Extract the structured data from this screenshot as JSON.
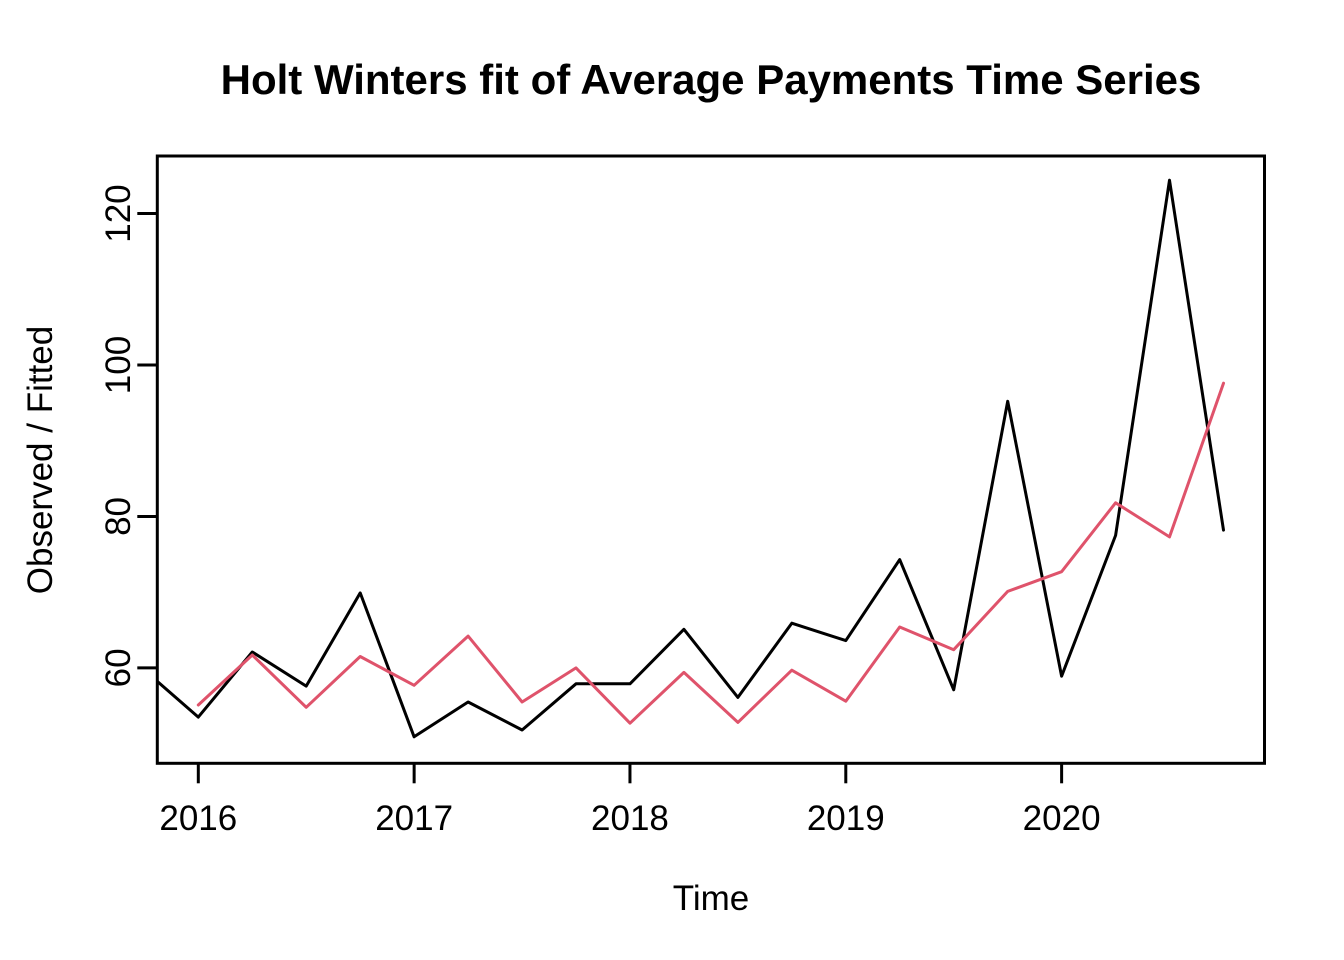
{
  "page": {
    "background": "#FFFFFF"
  },
  "chart_data": {
    "type": "line",
    "title": "Holt Winters fit of Average Payments Time Series",
    "xlabel": "Time",
    "ylabel": "Observed / Fitted",
    "grid": false,
    "legend": "none",
    "axis_color": "#000000",
    "xlim": [
      2015.81,
      2020.94
    ],
    "ylim": [
      47.4,
      127.6
    ],
    "x_tick_values": [
      2016,
      2017,
      2018,
      2019,
      2020
    ],
    "x_tick_labels": [
      "2016",
      "2017",
      "2018",
      "2019",
      "2020"
    ],
    "y_tick_values": [
      60,
      80,
      100,
      120
    ],
    "y_tick_labels": [
      "60",
      "80",
      "100",
      "120"
    ],
    "series": [
      {
        "name": "Observed",
        "color": "#000000",
        "x": [
          2015.75,
          2016.0,
          2016.25,
          2016.5,
          2016.75,
          2017.0,
          2017.25,
          2017.5,
          2017.75,
          2018.0,
          2018.25,
          2018.5,
          2018.75,
          2019.0,
          2019.25,
          2019.5,
          2019.75,
          2020.0,
          2020.25,
          2020.5,
          2020.75
        ],
        "values": [
          59.7,
          53.5,
          62.1,
          57.6,
          69.9,
          50.9,
          55.5,
          51.8,
          57.9,
          57.9,
          65.1,
          56.1,
          65.9,
          63.6,
          74.3,
          57.1,
          95.2,
          58.9,
          77.5,
          124.4,
          78.2
        ]
      },
      {
        "name": "Fitted",
        "color": "#DF536B",
        "x": [
          2016.0,
          2016.25,
          2016.5,
          2016.75,
          2017.0,
          2017.25,
          2017.5,
          2017.75,
          2018.0,
          2018.25,
          2018.5,
          2018.75,
          2019.0,
          2019.25,
          2019.5,
          2019.75,
          2020.0,
          2020.25,
          2020.5,
          2020.75
        ],
        "values": [
          55.1,
          61.7,
          54.8,
          61.5,
          57.7,
          64.2,
          55.5,
          60.0,
          52.7,
          59.4,
          52.8,
          59.7,
          55.6,
          65.4,
          62.4,
          70.1,
          72.7,
          81.8,
          77.3,
          97.6
        ]
      }
    ]
  }
}
